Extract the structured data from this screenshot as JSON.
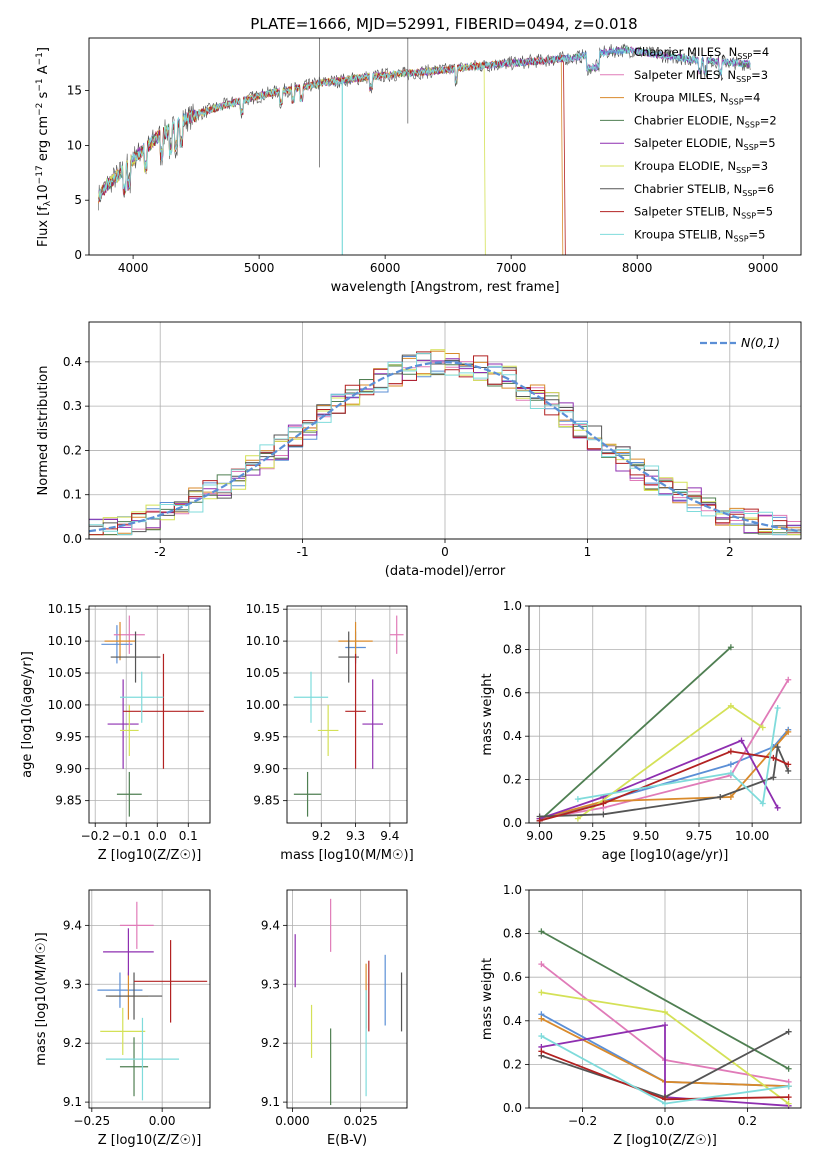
{
  "figure_title": "PLATE=1666, MJD=52991, FIBERID=0494, z=0.018",
  "models": [
    {
      "name": "Chabrier MILES",
      "nssp": "4",
      "color": "#5b8fd6"
    },
    {
      "name": "Salpeter MILES",
      "nssp": "3",
      "color": "#e07bb8"
    },
    {
      "name": "Kroupa MILES",
      "nssp": "4",
      "color": "#d98a2b"
    },
    {
      "name": "Chabrier ELODIE",
      "nssp": "2",
      "color": "#4f7f52"
    },
    {
      "name": "Salpeter ELODIE",
      "nssp": "5",
      "color": "#8e2fb0"
    },
    {
      "name": "Kroupa ELODIE",
      "nssp": "3",
      "color": "#d4e157"
    },
    {
      "name": "Chabrier STELIB",
      "nssp": "6",
      "color": "#555555"
    },
    {
      "name": "Salpeter STELIB",
      "nssp": "5",
      "color": "#b22222"
    },
    {
      "name": "Kroupa STELIB",
      "nssp": "5",
      "color": "#7fdbdb"
    }
  ],
  "chart_data": [
    {
      "id": "spectrum",
      "type": "line",
      "title": "PLATE=1666, MJD=52991, FIBERID=0494, z=0.018",
      "xlabel": "wavelength [Angstrom, rest frame]",
      "ylabel": "Flux [f_λ 10^-17 erg cm^-2 s^-1 A^-1]",
      "xlim": [
        3650,
        9300
      ],
      "ylim": [
        0,
        19.8
      ],
      "xticks": [
        4000,
        5000,
        6000,
        7000,
        8000,
        9000
      ],
      "yticks": [
        0,
        5,
        10,
        15
      ],
      "legend_position": "right",
      "continuum": {
        "x": [
          3720,
          3800,
          3900,
          4000,
          4100,
          4200,
          4300,
          4400,
          4500,
          4700,
          4900,
          5100,
          5300,
          5500,
          5700,
          5900,
          6100,
          6300,
          6500,
          6700,
          6900,
          7100,
          7300,
          7500,
          7700,
          7800,
          7900,
          8000,
          8200,
          8400,
          8600,
          8800,
          8900
        ],
        "y": [
          5.2,
          6.5,
          7.5,
          8.8,
          9.8,
          10.8,
          11.5,
          12.3,
          12.8,
          13.6,
          14.2,
          14.8,
          15.2,
          15.7,
          16.0,
          16.3,
          16.5,
          16.7,
          16.9,
          17.2,
          17.4,
          17.6,
          17.8,
          18.0,
          18.4,
          18.6,
          18.7,
          18.6,
          18.2,
          17.9,
          17.7,
          17.5,
          17.4
        ]
      }
    },
    {
      "id": "residuals",
      "type": "line",
      "xlabel": "(data-model)/error",
      "ylabel": "Normed distribution",
      "xlim": [
        -2.5,
        2.5
      ],
      "ylim": [
        0,
        0.49
      ],
      "xticks": [
        -2,
        -1,
        0,
        1,
        2
      ],
      "yticks": [
        0.0,
        0.1,
        0.2,
        0.3,
        0.4
      ],
      "legend": "N(0,1)",
      "legend_position": "top-right",
      "grid": true,
      "reference_curve": "gaussian mean 0 sigma 1",
      "bins": 50
    },
    {
      "id": "age_vs_Z",
      "type": "scatter",
      "xlabel": "Z [log10(Z/Z☉)]",
      "ylabel": "age [log10(age/yr)]",
      "xlim": [
        -0.22,
        0.17
      ],
      "ylim": [
        9.815,
        10.155
      ],
      "xticks": [
        -0.2,
        -0.1,
        0.0,
        0.1
      ],
      "xtick_labels": [
        "−0.2",
        "−0.1",
        "0.0",
        "0.1"
      ],
      "yticks": [
        9.85,
        9.9,
        9.95,
        10.0,
        10.05,
        10.1,
        10.15
      ],
      "points": [
        {
          "x": -0.13,
          "y": 10.095,
          "xerr": 0.05,
          "yerr": 0.03
        },
        {
          "x": -0.09,
          "y": 10.11,
          "xerr": 0.05,
          "yerr": 0.03
        },
        {
          "x": -0.12,
          "y": 10.1,
          "xerr": 0.05,
          "yerr": 0.03
        },
        {
          "x": -0.09,
          "y": 9.86,
          "xerr": 0.04,
          "yerr": 0.035
        },
        {
          "x": -0.11,
          "y": 9.97,
          "xerr": 0.05,
          "yerr": 0.07
        },
        {
          "x": -0.09,
          "y": 9.96,
          "xerr": 0.03,
          "yerr": 0.04
        },
        {
          "x": -0.07,
          "y": 10.075,
          "xerr": 0.08,
          "yerr": 0.04
        },
        {
          "x": 0.02,
          "y": 9.99,
          "xerr": 0.13,
          "yerr": 0.09
        },
        {
          "x": -0.05,
          "y": 10.012,
          "xerr": 0.07,
          "yerr": 0.04
        }
      ]
    },
    {
      "id": "age_vs_mass",
      "type": "scatter",
      "xlabel": "mass [log10(M/M☉)]",
      "xlim": [
        9.1,
        9.45
      ],
      "ylim": [
        9.815,
        10.155
      ],
      "xticks": [
        9.2,
        9.3,
        9.4
      ],
      "yticks": [
        9.85,
        9.9,
        9.95,
        10.0,
        10.05,
        10.1,
        10.15
      ],
      "points": [
        {
          "x": 9.3,
          "y": 10.09,
          "xerr": 0.03,
          "yerr": 0.025
        },
        {
          "x": 9.42,
          "y": 10.11,
          "xerr": 0.02,
          "yerr": 0.03
        },
        {
          "x": 9.3,
          "y": 10.1,
          "xerr": 0.05,
          "yerr": 0.03
        },
        {
          "x": 9.16,
          "y": 9.86,
          "xerr": 0.04,
          "yerr": 0.035
        },
        {
          "x": 9.35,
          "y": 9.97,
          "xerr": 0.03,
          "yerr": 0.07
        },
        {
          "x": 9.22,
          "y": 9.96,
          "xerr": 0.03,
          "yerr": 0.04
        },
        {
          "x": 9.28,
          "y": 10.075,
          "xerr": 0.03,
          "yerr": 0.04
        },
        {
          "x": 9.3,
          "y": 9.99,
          "xerr": 0.03,
          "yerr": 0.09
        },
        {
          "x": 9.17,
          "y": 10.012,
          "xerr": 0.05,
          "yerr": 0.04
        }
      ]
    },
    {
      "id": "weight_vs_age",
      "type": "line",
      "xlabel": "age [log10(age/yr)]",
      "ylabel": "mass weight",
      "xlim": [
        8.95,
        10.23
      ],
      "ylim": [
        0,
        1
      ],
      "xticks": [
        9.0,
        9.25,
        9.5,
        9.75,
        10.0
      ],
      "yticks": [
        0.0,
        0.2,
        0.4,
        0.6,
        0.8,
        1.0
      ],
      "series": [
        {
          "x": [
            9.0,
            9.3,
            9.9,
            10.1,
            10.17
          ],
          "y": [
            0.01,
            0.1,
            0.27,
            0.35,
            0.43
          ]
        },
        {
          "x": [
            9.0,
            9.3,
            9.9,
            10.17
          ],
          "y": [
            0.02,
            0.07,
            0.22,
            0.66
          ]
        },
        {
          "x": [
            9.0,
            9.3,
            9.9,
            10.17
          ],
          "y": [
            0.02,
            0.1,
            0.12,
            0.42
          ]
        },
        {
          "x": [
            9.0,
            9.9
          ],
          "y": [
            0.01,
            0.81
          ]
        },
        {
          "x": [
            9.0,
            9.3,
            9.95,
            10.12
          ],
          "y": [
            0.02,
            0.12,
            0.38,
            0.07
          ]
        },
        {
          "x": [
            9.18,
            9.9,
            10.05
          ],
          "y": [
            0.02,
            0.54,
            0.44
          ]
        },
        {
          "x": [
            9.0,
            9.3,
            9.85,
            10.1,
            10.12,
            10.17
          ],
          "y": [
            0.03,
            0.04,
            0.12,
            0.21,
            0.35,
            0.24
          ]
        },
        {
          "x": [
            9.0,
            9.3,
            9.9,
            10.1,
            10.17
          ],
          "y": [
            0.01,
            0.09,
            0.33,
            0.3,
            0.27
          ]
        },
        {
          "x": [
            9.18,
            9.9,
            10.05,
            10.12
          ],
          "y": [
            0.11,
            0.23,
            0.09,
            0.53
          ]
        }
      ]
    },
    {
      "id": "mass_vs_Z",
      "type": "scatter",
      "xlabel": "Z [log10(Z/Z☉)]",
      "ylabel": "mass [log10(M/M☉)]",
      "xlim": [
        -0.26,
        0.17
      ],
      "ylim": [
        9.09,
        9.46
      ],
      "xticks": [
        -0.25,
        0.0
      ],
      "xtick_labels": [
        "−0.25",
        "0.00"
      ],
      "yticks": [
        9.1,
        9.2,
        9.3,
        9.4
      ],
      "points": [
        {
          "x": -0.15,
          "y": 9.29,
          "xerr": 0.08,
          "yerr": 0.03
        },
        {
          "x": -0.09,
          "y": 9.4,
          "xerr": 0.06,
          "yerr": 0.04
        },
        {
          "x": -0.12,
          "y": 9.28,
          "xerr": 0.07,
          "yerr": 0.04
        },
        {
          "x": -0.1,
          "y": 9.16,
          "xerr": 0.05,
          "yerr": 0.05
        },
        {
          "x": -0.12,
          "y": 9.355,
          "xerr": 0.09,
          "yerr": 0.04
        },
        {
          "x": -0.14,
          "y": 9.22,
          "xerr": 0.08,
          "yerr": 0.04
        },
        {
          "x": -0.1,
          "y": 9.28,
          "xerr": 0.1,
          "yerr": 0.04
        },
        {
          "x": 0.03,
          "y": 9.305,
          "xerr": 0.13,
          "yerr": 0.07
        },
        {
          "x": -0.07,
          "y": 9.173,
          "xerr": 0.13,
          "yerr": 0.07
        }
      ]
    },
    {
      "id": "mass_vs_EBV",
      "type": "scatter",
      "xlabel": "E(B-V)",
      "xlim": [
        -0.002,
        0.042
      ],
      "ylim": [
        9.09,
        9.46
      ],
      "xticks": [
        0.0,
        0.025
      ],
      "xtick_labels": [
        "0.000",
        "0.025"
      ],
      "yticks": [
        9.1,
        9.2,
        9.3,
        9.4
      ],
      "points": [
        {
          "x": 0.034,
          "y": 9.29,
          "yerr": 0.06
        },
        {
          "x": 0.014,
          "y": 9.4,
          "yerr": 0.045
        },
        {
          "x": 0.027,
          "y": 9.28,
          "yerr": 0.055
        },
        {
          "x": 0.014,
          "y": 9.16,
          "yerr": 0.065
        },
        {
          "x": 0.001,
          "y": 9.34,
          "yerr": 0.045
        },
        {
          "x": 0.007,
          "y": 9.22,
          "yerr": 0.045
        },
        {
          "x": 0.04,
          "y": 9.27,
          "yerr": 0.05
        },
        {
          "x": 0.028,
          "y": 9.28,
          "yerr": 0.06
        },
        {
          "x": 0.027,
          "y": 9.2,
          "yerr": 0.09
        }
      ]
    },
    {
      "id": "weight_vs_Z",
      "type": "line",
      "xlabel": "Z [log10(Z/Z☉)]",
      "ylabel": "mass weight",
      "xlim": [
        -0.33,
        0.33
      ],
      "ylim": [
        0,
        1
      ],
      "xticks": [
        -0.2,
        0.0,
        0.2
      ],
      "xtick_labels": [
        "−0.2",
        "0.0",
        "0.2"
      ],
      "yticks": [
        0.0,
        0.2,
        0.4,
        0.6,
        0.8,
        1.0
      ],
      "series": [
        {
          "x": [
            -0.3,
            0.0,
            0.3
          ],
          "y": [
            0.43,
            0.12,
            0.1
          ]
        },
        {
          "x": [
            -0.3,
            0.0,
            0.3
          ],
          "y": [
            0.66,
            0.22,
            0.12
          ]
        },
        {
          "x": [
            -0.3,
            0.0,
            0.3
          ],
          "y": [
            0.41,
            0.12,
            0.1
          ]
        },
        {
          "x": [
            -0.3,
            0.3
          ],
          "y": [
            0.81,
            0.18
          ]
        },
        {
          "x": [
            -0.3,
            0.0,
            0.0,
            0.3
          ],
          "y": [
            0.28,
            0.38,
            0.05,
            0.01
          ]
        },
        {
          "x": [
            -0.3,
            0.0,
            0.3
          ],
          "y": [
            0.53,
            0.44,
            0.02
          ]
        },
        {
          "x": [
            -0.3,
            0.0,
            0.3
          ],
          "y": [
            0.24,
            0.05,
            0.35
          ]
        },
        {
          "x": [
            -0.3,
            0.0,
            0.3
          ],
          "y": [
            0.26,
            0.04,
            0.05
          ]
        },
        {
          "x": [
            -0.3,
            0.0,
            0.3
          ],
          "y": [
            0.33,
            0.02,
            0.1
          ]
        }
      ]
    }
  ]
}
